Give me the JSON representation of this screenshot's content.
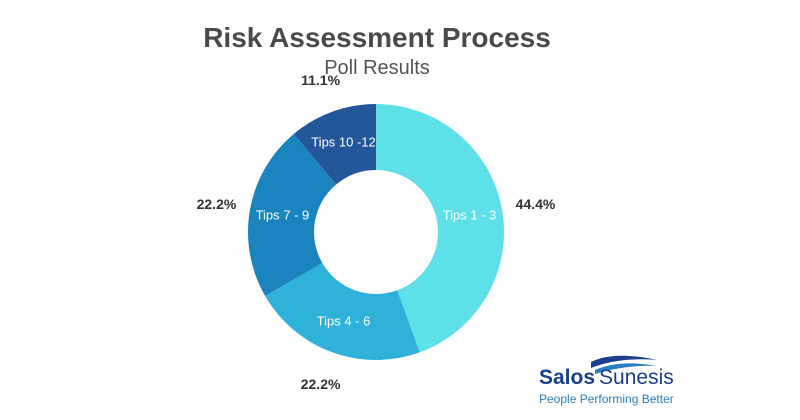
{
  "chart_data": {
    "type": "pie",
    "title": "Risk Assessment Process",
    "subtitle": "Poll Results",
    "donut": true,
    "slices": [
      {
        "label": "Tips 1 - 3",
        "value": 44.4,
        "value_label": "44.4%",
        "color": "#5ee0e8"
      },
      {
        "label": "Tips 4 - 6",
        "value": 22.2,
        "value_label": "22.2%",
        "color": "#2eb2da"
      },
      {
        "label": "Tips 7 - 9",
        "value": 22.2,
        "value_label": "22.2%",
        "color": "#1a84bf"
      },
      {
        "label": "Tips 10 -12",
        "value": 11.1,
        "value_label": "11.1%",
        "color": "#23579a"
      }
    ]
  },
  "logo": {
    "name_part1": "Salos",
    "name_part2": "Sunesis",
    "tagline": "People Performing Better"
  }
}
